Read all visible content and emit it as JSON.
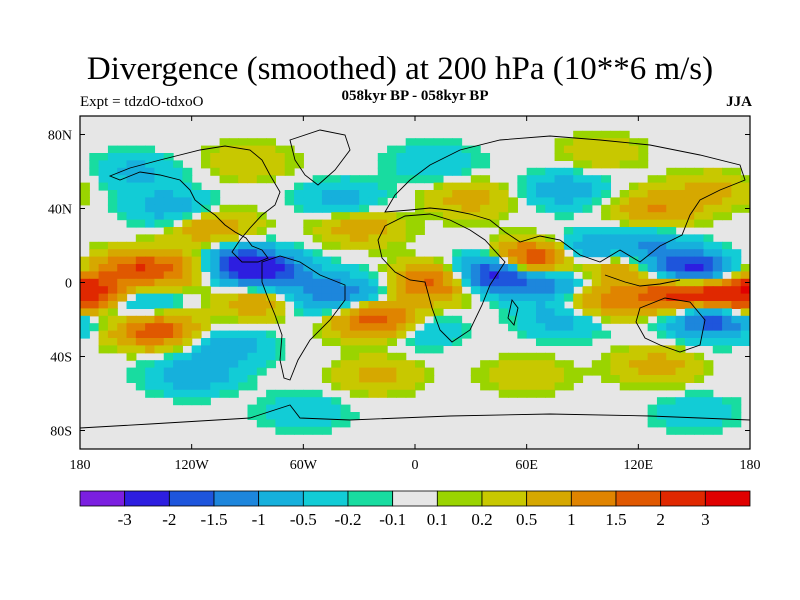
{
  "chart_data": {
    "type": "heatmap",
    "title": "Divergence (smoothed) at 200 hPa (10**6 m/s)",
    "subtitle": "058kyr BP - 058kyr BP",
    "left_label": "Expt = tdzdO-tdxoO",
    "right_label": "JJA",
    "xlim": [
      -180,
      180
    ],
    "ylim": [
      -90,
      90
    ],
    "x_ticks": [
      {
        "value": -180,
        "label": "180"
      },
      {
        "value": -120,
        "label": "120W"
      },
      {
        "value": -60,
        "label": "60W"
      },
      {
        "value": 0,
        "label": "0"
      },
      {
        "value": 60,
        "label": "60E"
      },
      {
        "value": 120,
        "label": "120E"
      },
      {
        "value": 180,
        "label": "180"
      }
    ],
    "y_ticks": [
      {
        "value": 80,
        "label": "80N"
      },
      {
        "value": 40,
        "label": "40N"
      },
      {
        "value": 0,
        "label": "0"
      },
      {
        "value": -40,
        "label": "40S"
      },
      {
        "value": -80,
        "label": "80S"
      }
    ],
    "colorbar": {
      "levels": [
        "-3",
        "-2",
        "-1.5",
        "-1",
        "-0.5",
        "-0.2",
        "-0.1",
        "0.1",
        "0.2",
        "0.5",
        "1",
        "1.5",
        "2",
        "3"
      ],
      "colors": [
        "#7b1fe0",
        "#2d1ee0",
        "#1e55dc",
        "#1d86dc",
        "#16b0dc",
        "#12ccd6",
        "#18dca0",
        "#e6e6e6",
        "#9ad400",
        "#c8c800",
        "#d6a800",
        "#e08400",
        "#e05800",
        "#e02800",
        "#e00000"
      ]
    },
    "field_features": [
      {
        "lon": -150,
        "lat": 7,
        "value": 1.8
      },
      {
        "lon": -120,
        "lat": 8,
        "value": 1.0
      },
      {
        "lon": -150,
        "lat": -13,
        "value": -1.2
      },
      {
        "lon": -95,
        "lat": 10,
        "value": -2.2
      },
      {
        "lon": -75,
        "lat": 5,
        "value": -1.5
      },
      {
        "lon": -175,
        "lat": -8,
        "value": 1.6
      },
      {
        "lon": -140,
        "lat": -25,
        "value": 2.0
      },
      {
        "lon": -100,
        "lat": -35,
        "value": -0.8
      },
      {
        "lon": -80,
        "lat": -10,
        "value": 1.2
      },
      {
        "lon": -60,
        "lat": -10,
        "value": -0.9
      },
      {
        "lon": -35,
        "lat": -5,
        "value": -1.1
      },
      {
        "lon": -20,
        "lat": -20,
        "value": 2.1
      },
      {
        "lon": 10,
        "lat": 0,
        "value": 1.8
      },
      {
        "lon": 0,
        "lat": -25,
        "value": -0.7
      },
      {
        "lon": 42,
        "lat": 5,
        "value": -2.6
      },
      {
        "lon": 65,
        "lat": 12,
        "value": 2.9
      },
      {
        "lon": 72,
        "lat": 0,
        "value": -1.5
      },
      {
        "lon": 90,
        "lat": 15,
        "value": -1.7
      },
      {
        "lon": 105,
        "lat": 10,
        "value": 1.5
      },
      {
        "lon": 125,
        "lat": 18,
        "value": -1.2
      },
      {
        "lon": 150,
        "lat": 5,
        "value": -2.9
      },
      {
        "lon": 140,
        "lat": -5,
        "value": 2.5
      },
      {
        "lon": 170,
        "lat": -5,
        "value": 2.3
      },
      {
        "lon": 160,
        "lat": -20,
        "value": -2.0
      },
      {
        "lon": 100,
        "lat": -10,
        "value": 1.2
      },
      {
        "lon": 80,
        "lat": -20,
        "value": -0.8
      },
      {
        "lon": -110,
        "lat": 30,
        "value": 1.0
      },
      {
        "lon": -130,
        "lat": 40,
        "value": -0.9
      },
      {
        "lon": -30,
        "lat": 30,
        "value": 0.8
      },
      {
        "lon": -40,
        "lat": 45,
        "value": -0.7
      },
      {
        "lon": 30,
        "lat": 45,
        "value": 0.7
      },
      {
        "lon": 80,
        "lat": 50,
        "value": -0.8
      },
      {
        "lon": 130,
        "lat": 40,
        "value": 1.0
      },
      {
        "lon": 160,
        "lat": 50,
        "value": 0.6
      },
      {
        "lon": -150,
        "lat": 60,
        "value": -0.6
      },
      {
        "lon": -90,
        "lat": 65,
        "value": 0.5
      },
      {
        "lon": 10,
        "lat": 65,
        "value": -0.5
      },
      {
        "lon": 100,
        "lat": 70,
        "value": 0.4
      },
      {
        "lon": -120,
        "lat": -50,
        "value": -0.9
      },
      {
        "lon": -20,
        "lat": -50,
        "value": 0.6
      },
      {
        "lon": 60,
        "lat": -50,
        "value": 0.5
      },
      {
        "lon": 130,
        "lat": -45,
        "value": 0.7
      },
      {
        "lon": -60,
        "lat": -70,
        "value": -0.5
      },
      {
        "lon": 150,
        "lat": -70,
        "value": -0.4
      }
    ]
  }
}
